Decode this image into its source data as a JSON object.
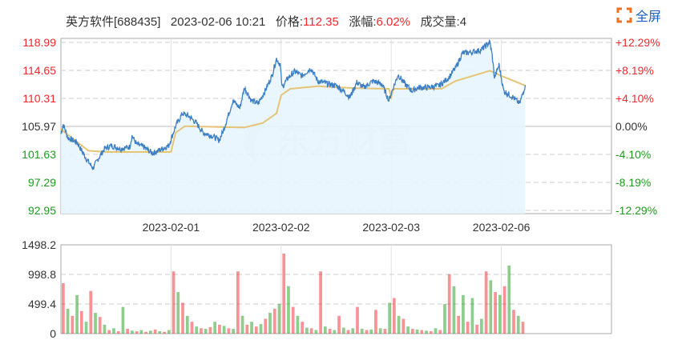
{
  "header": {
    "name": "英方软件[688435]",
    "datetime": "2023-02-06 10:21",
    "price_label": "价格:",
    "price": "112.35",
    "change_label": "涨幅:",
    "change": "6.02%",
    "volume_label": "成交量:",
    "volume": "4"
  },
  "fullscreen": {
    "label": "全屏",
    "icon": "expand-icon"
  },
  "watermark": "东方财富",
  "colors": {
    "up": "#f0282d",
    "down": "#1e9b1e",
    "price_line": "#3d7fc4",
    "avg_line": "#e6c477",
    "fill": "#e8f5fd"
  },
  "chart_data": [
    {
      "type": "line",
      "ylim": [
        92.95,
        118.99
      ],
      "prev_close": 105.97,
      "y_ticks_left": [
        "118.99",
        "114.65",
        "110.31",
        "105.97",
        "101.63",
        "97.29",
        "92.95"
      ],
      "y_ticks_right": [
        "+12.29%",
        "+8.19%",
        "+4.10%",
        "0.00%",
        "-4.10%",
        "-8.19%",
        "-12.29%"
      ],
      "x_ticks": [
        "2023-02-01",
        "2023-02-02",
        "2023-02-03",
        "2023-02-06"
      ],
      "x_unit": "minutes of trading (240 per day, 5 days)",
      "series": [
        {
          "role": "price",
          "points": [
            [
              0,
              104.8
            ],
            [
              5,
              106.3
            ],
            [
              15,
              104.2
            ],
            [
              35,
              103.5
            ],
            [
              55,
              101.0
            ],
            [
              70,
              99.5
            ],
            [
              80,
              100.8
            ],
            [
              95,
              102.5
            ],
            [
              110,
              103.0
            ],
            [
              130,
              102.5
            ],
            [
              150,
              102.8
            ],
            [
              155,
              104.5
            ],
            [
              165,
              103.2
            ],
            [
              180,
              102.8
            ],
            [
              200,
              101.8
            ],
            [
              215,
              102.3
            ],
            [
              235,
              103.0
            ],
            [
              250,
              106.0
            ],
            [
              265,
              108.0
            ],
            [
              280,
              107.5
            ],
            [
              295,
              106.5
            ],
            [
              310,
              105.0
            ],
            [
              330,
              104.5
            ],
            [
              345,
              103.8
            ],
            [
              355,
              105.5
            ],
            [
              375,
              110.0
            ],
            [
              390,
              108.8
            ],
            [
              400,
              112.0
            ],
            [
              415,
              110.0
            ],
            [
              430,
              109.5
            ],
            [
              445,
              111.5
            ],
            [
              460,
              113.8
            ],
            [
              470,
              116.5
            ],
            [
              478,
              115.5
            ],
            [
              482,
              112.0
            ],
            [
              495,
              113.5
            ],
            [
              510,
              114.5
            ],
            [
              525,
              113.8
            ],
            [
              545,
              115.0
            ],
            [
              560,
              113.0
            ],
            [
              585,
              112.5
            ],
            [
              600,
              112.3
            ],
            [
              615,
              111.5
            ],
            [
              630,
              110.5
            ],
            [
              645,
              112.8
            ],
            [
              660,
              112.0
            ],
            [
              680,
              113.0
            ],
            [
              700,
              112.5
            ],
            [
              715,
              110.0
            ],
            [
              722,
              111.5
            ],
            [
              735,
              114.0
            ],
            [
              750,
              112.5
            ],
            [
              765,
              111.5
            ],
            [
              780,
              112.0
            ],
            [
              800,
              112.0
            ],
            [
              825,
              112.3
            ],
            [
              845,
              113.5
            ],
            [
              860,
              115.0
            ],
            [
              875,
              117.3
            ],
            [
              895,
              117.5
            ],
            [
              915,
              117.8
            ],
            [
              935,
              119.0
            ],
            [
              940,
              117.0
            ],
            [
              945,
              113.5
            ],
            [
              955,
              115.5
            ],
            [
              965,
              111.5
            ],
            [
              985,
              110.5
            ],
            [
              1000,
              109.5
            ],
            [
              1012,
              112.35
            ]
          ]
        },
        {
          "role": "average",
          "points": [
            [
              0,
              105.5
            ],
            [
              60,
              102.2
            ],
            [
              100,
              102.0
            ],
            [
              240,
              102.0
            ],
            [
              250,
              105.0
            ],
            [
              270,
              106.0
            ],
            [
              400,
              105.8
            ],
            [
              440,
              106.5
            ],
            [
              470,
              108.0
            ],
            [
              480,
              110.8
            ],
            [
              500,
              111.8
            ],
            [
              560,
              112.2
            ],
            [
              640,
              111.9
            ],
            [
              715,
              111.8
            ],
            [
              720,
              110.5
            ],
            [
              725,
              111.8
            ],
            [
              830,
              111.8
            ],
            [
              860,
              113.0
            ],
            [
              935,
              114.6
            ],
            [
              960,
              113.8
            ],
            [
              1012,
              112.3
            ]
          ]
        }
      ]
    },
    {
      "type": "bar",
      "ylim": [
        0,
        1498.2
      ],
      "y_ticks": [
        "1498.2",
        "998.8",
        "499.4",
        "0"
      ],
      "values": [
        850,
        420,
        300,
        650,
        380,
        200,
        720,
        350,
        280,
        150,
        60,
        90,
        40,
        450,
        80,
        50,
        40,
        60,
        30,
        50,
        70,
        40,
        30,
        60,
        1050,
        700,
        520,
        300,
        200,
        120,
        90,
        80,
        110,
        200,
        150,
        130,
        90,
        80,
        1050,
        300,
        150,
        200,
        120,
        160,
        250,
        350,
        420,
        500,
        1350,
        800,
        450,
        300,
        200,
        100,
        90,
        60,
        1050,
        120,
        80,
        60,
        300,
        100,
        60,
        90,
        450,
        80,
        60,
        70,
        400,
        90,
        80,
        520,
        600,
        300,
        250,
        120,
        80,
        70,
        60,
        50,
        40,
        90,
        60,
        500,
        1000,
        800,
        300,
        650,
        200,
        600,
        150,
        250,
        1050,
        900,
        700,
        650,
        800,
        1150,
        400,
        300,
        200
      ],
      "up_down": "alternating red/green"
    }
  ]
}
